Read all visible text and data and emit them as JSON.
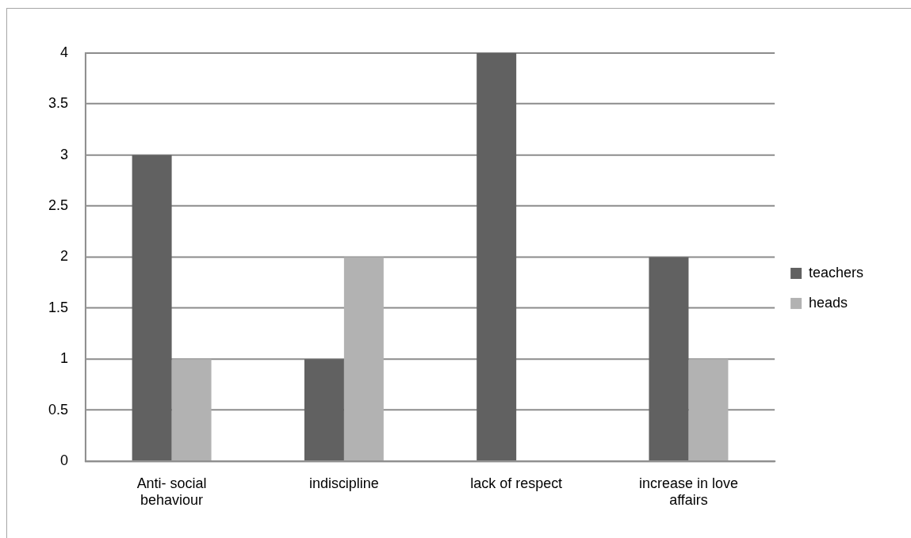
{
  "chart_data": {
    "type": "bar",
    "categories": [
      "Anti- social behaviour",
      "indiscipline",
      "lack of respect",
      "increase in love affairs"
    ],
    "series": [
      {
        "name": "teachers",
        "color": "#616161",
        "values": [
          3,
          1,
          4,
          2
        ]
      },
      {
        "name": "heads",
        "color": "#b2b2b2",
        "values": [
          1,
          2,
          0,
          1
        ]
      }
    ],
    "ylim": [
      0,
      4
    ],
    "yticks": [
      0,
      0.5,
      1,
      1.5,
      2,
      2.5,
      3,
      3.5,
      4
    ],
    "grid": "y",
    "legend": "right"
  }
}
